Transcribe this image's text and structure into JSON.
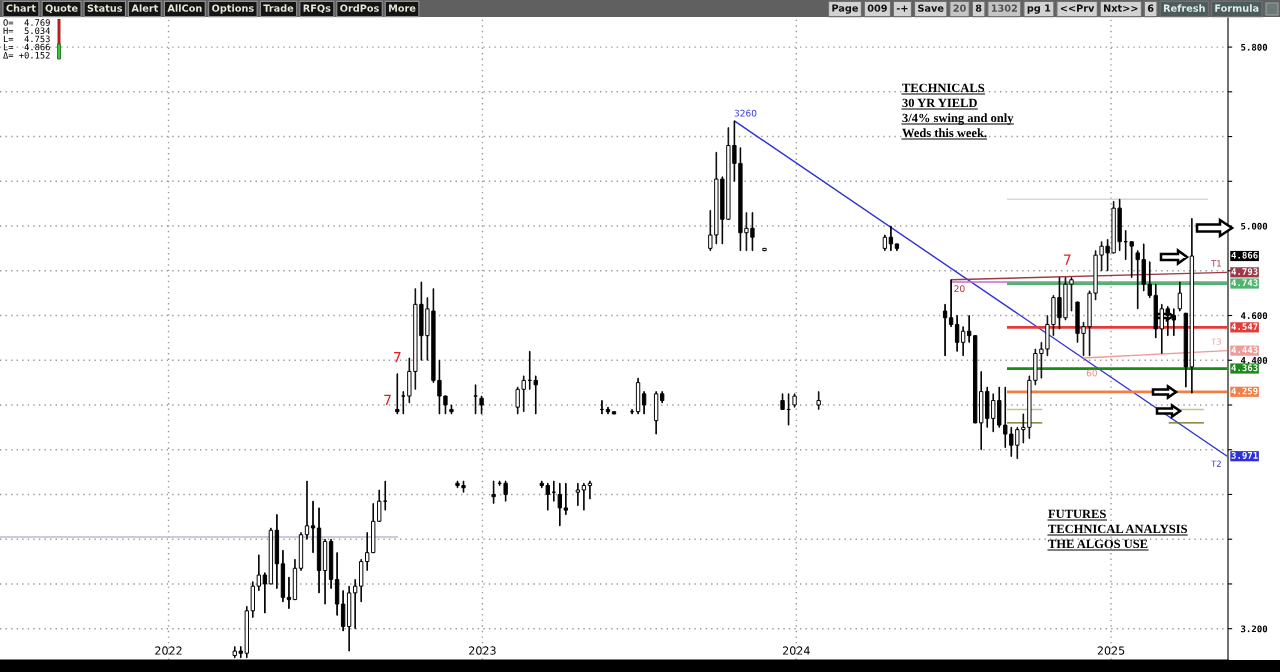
{
  "chart_data": {
    "type": "candlestick",
    "color": "#000000",
    "x": [
      "2022-03-19",
      "2022-03-26",
      "2022-04-02",
      "2022-04-09",
      "2022-04-16",
      "2022-04-23",
      "2022-04-30",
      "2022-05-07",
      "2022-05-14",
      "2022-05-21",
      "2022-05-28",
      "2022-06-04",
      "2022-06-11",
      "2022-06-18",
      "2022-06-25",
      "2022-07-02",
      "2022-07-09",
      "2022-07-16",
      "2022-07-23",
      "2022-07-30",
      "2022-08-06",
      "2022-08-13",
      "2022-08-20",
      "2022-08-27",
      "2022-09-03",
      "2022-09-10",
      "2022-09-24",
      "2022-10-01",
      "2022-10-08",
      "2022-10-15",
      "2022-10-22",
      "2022-10-29",
      "2022-11-05",
      "2022-11-12",
      "2022-11-19",
      "2022-11-26",
      "2022-12-03",
      "2022-12-10",
      "2022-12-24",
      "2022-12-31",
      "2023-01-14",
      "2023-01-21",
      "2023-01-28",
      "2023-02-11",
      "2023-02-18",
      "2023-02-25",
      "2023-03-04",
      "2023-03-11",
      "2023-03-18",
      "2023-03-25",
      "2023-04-01",
      "2023-04-08",
      "2023-04-22",
      "2023-04-29",
      "2023-05-06",
      "2023-05-20",
      "2023-05-27",
      "2023-06-03",
      "2023-06-24",
      "2023-07-01",
      "2023-07-08",
      "2023-07-22",
      "2023-07-29",
      "2023-09-23",
      "2023-09-30",
      "2023-10-07",
      "2023-10-14",
      "2023-10-21",
      "2023-10-28",
      "2023-11-04",
      "2023-11-11",
      "2023-11-25",
      "2023-12-16",
      "2023-12-23",
      "2023-12-30",
      "2024-01-27",
      "2024-04-13",
      "2024-04-20",
      "2024-04-27",
      "2024-06-22",
      "2024-06-29",
      "2024-07-06",
      "2024-07-13",
      "2024-07-20",
      "2024-07-27",
      "2024-08-03",
      "2024-08-10",
      "2024-08-17",
      "2024-08-24",
      "2024-08-31",
      "2024-09-07",
      "2024-09-14",
      "2024-09-21",
      "2024-09-28",
      "2024-10-05",
      "2024-10-12",
      "2024-10-19",
      "2024-10-26",
      "2024-11-02",
      "2024-11-09",
      "2024-11-16",
      "2024-11-23",
      "2024-11-30",
      "2024-12-07",
      "2024-12-14",
      "2024-12-21",
      "2024-12-28",
      "2025-01-04",
      "2025-01-11",
      "2025-01-18",
      "2025-01-25",
      "2025-02-01",
      "2025-02-08",
      "2025-02-15",
      "2025-02-22",
      "2025-03-01",
      "2025-03-08",
      "2025-03-15",
      "2025-03-22",
      "2025-03-29",
      "2025-04-05"
    ],
    "ohlc": [
      [
        3.08,
        3.12,
        3.07,
        3.1
      ],
      [
        3.1,
        3.12,
        3.07,
        3.09
      ],
      [
        3.09,
        3.3,
        3.07,
        3.28
      ],
      [
        3.28,
        3.41,
        3.25,
        3.39
      ],
      [
        3.39,
        3.53,
        3.37,
        3.44
      ],
      [
        3.44,
        3.45,
        3.27,
        3.4
      ],
      [
        3.4,
        3.65,
        3.4,
        3.64
      ],
      [
        3.64,
        3.71,
        3.38,
        3.49
      ],
      [
        3.49,
        3.55,
        3.32,
        3.34
      ],
      [
        3.34,
        3.43,
        3.29,
        3.33
      ],
      [
        3.33,
        3.51,
        3.33,
        3.47
      ],
      [
        3.47,
        3.63,
        3.46,
        3.62
      ],
      [
        3.62,
        3.86,
        3.6,
        3.66
      ],
      [
        3.66,
        3.77,
        3.54,
        3.65
      ],
      [
        3.65,
        3.74,
        3.36,
        3.46
      ],
      [
        3.46,
        3.6,
        3.31,
        3.59
      ],
      [
        3.59,
        3.6,
        3.38,
        3.42
      ],
      [
        3.42,
        3.54,
        3.26,
        3.31
      ],
      [
        3.31,
        3.37,
        3.19,
        3.21
      ],
      [
        3.21,
        3.39,
        3.1,
        3.36
      ],
      [
        3.36,
        3.42,
        3.2,
        3.39
      ],
      [
        3.39,
        3.51,
        3.32,
        3.5
      ],
      [
        3.5,
        3.63,
        3.46,
        3.54
      ],
      [
        3.54,
        3.76,
        3.54,
        3.68
      ],
      [
        3.68,
        3.82,
        3.68,
        3.77
      ],
      [
        3.77,
        3.86,
        3.73,
        3.77
      ],
      [
        4.18,
        4.34,
        4.16,
        4.17
      ],
      [
        4.24,
        4.26,
        4.16,
        4.24
      ],
      [
        4.24,
        4.41,
        4.21,
        4.35
      ],
      [
        4.35,
        4.72,
        4.27,
        4.65
      ],
      [
        4.65,
        4.75,
        4.4,
        4.51
      ],
      [
        4.51,
        4.68,
        4.4,
        4.63
      ],
      [
        4.62,
        4.72,
        4.3,
        4.31
      ],
      [
        4.31,
        4.4,
        4.16,
        4.24
      ],
      [
        4.24,
        4.24,
        4.16,
        4.2
      ],
      [
        4.18,
        4.2,
        4.16,
        4.17
      ],
      [
        3.85,
        3.86,
        3.83,
        3.84
      ],
      [
        3.84,
        3.86,
        3.81,
        3.83
      ],
      [
        4.24,
        4.29,
        4.16,
        4.24
      ],
      [
        4.23,
        4.24,
        4.16,
        4.2
      ],
      [
        3.8,
        3.86,
        3.76,
        3.79
      ],
      [
        3.85,
        3.86,
        3.84,
        3.85
      ],
      [
        3.85,
        3.86,
        3.77,
        3.8
      ],
      [
        4.19,
        4.28,
        4.16,
        4.27
      ],
      [
        4.27,
        4.33,
        4.17,
        4.31
      ],
      [
        4.31,
        4.44,
        4.27,
        4.31
      ],
      [
        4.31,
        4.33,
        4.16,
        4.29
      ],
      [
        3.85,
        3.86,
        3.83,
        3.84
      ],
      [
        3.84,
        3.85,
        3.73,
        3.8
      ],
      [
        3.81,
        3.86,
        3.77,
        3.81
      ],
      [
        3.8,
        3.85,
        3.66,
        3.74
      ],
      [
        3.74,
        3.85,
        3.71,
        3.73
      ],
      [
        3.81,
        3.85,
        3.75,
        3.82
      ],
      [
        3.82,
        3.85,
        3.73,
        3.84
      ],
      [
        3.84,
        3.86,
        3.78,
        3.85
      ],
      [
        4.18,
        4.22,
        4.16,
        4.18
      ],
      [
        4.18,
        4.19,
        4.16,
        4.17
      ],
      [
        4.17,
        4.17,
        4.16,
        4.16
      ],
      [
        4.17,
        4.18,
        4.16,
        4.17
      ],
      [
        4.17,
        4.32,
        4.16,
        4.3
      ],
      [
        4.25,
        4.26,
        4.16,
        4.2
      ],
      [
        4.13,
        4.26,
        4.07,
        4.25
      ],
      [
        4.25,
        4.26,
        4.21,
        4.22
      ],
      [
        4.9,
        5.07,
        4.89,
        4.96
      ],
      [
        4.96,
        5.33,
        4.92,
        5.21
      ],
      [
        5.21,
        5.22,
        4.92,
        5.03
      ],
      [
        5.03,
        5.44,
        5.03,
        5.36
      ],
      [
        5.36,
        5.47,
        5.2,
        5.28
      ],
      [
        5.28,
        5.35,
        4.89,
        4.97
      ],
      [
        4.97,
        5.06,
        4.89,
        4.99
      ],
      [
        4.99,
        5.06,
        4.89,
        4.95
      ],
      [
        4.89,
        4.9,
        4.89,
        4.9
      ],
      [
        4.22,
        4.25,
        4.18,
        4.18
      ],
      [
        4.18,
        4.25,
        4.11,
        4.18
      ],
      [
        4.2,
        4.25,
        4.19,
        4.24
      ],
      [
        4.2,
        4.26,
        4.18,
        4.22
      ],
      [
        4.9,
        4.96,
        4.89,
        4.95
      ],
      [
        4.95,
        5.0,
        4.89,
        4.92
      ],
      [
        4.92,
        4.92,
        4.89,
        4.9
      ],
      [
        4.62,
        4.65,
        4.42,
        4.59
      ],
      [
        4.59,
        4.76,
        4.55,
        4.56
      ],
      [
        4.56,
        4.6,
        4.44,
        4.48
      ],
      [
        4.48,
        4.55,
        4.42,
        4.53
      ],
      [
        4.53,
        4.6,
        4.48,
        4.51
      ],
      [
        4.51,
        4.51,
        4.12,
        4.12
      ],
      [
        4.12,
        4.35,
        4.0,
        4.26
      ],
      [
        4.26,
        4.28,
        4.1,
        4.14
      ],
      [
        4.14,
        4.25,
        4.08,
        4.22
      ],
      [
        4.22,
        4.28,
        4.1,
        4.11
      ],
      [
        4.11,
        4.28,
        4.01,
        4.07
      ],
      [
        4.07,
        4.1,
        3.97,
        4.02
      ],
      [
        4.02,
        4.1,
        3.96,
        4.09
      ],
      [
        4.09,
        4.16,
        4.03,
        4.1
      ],
      [
        4.1,
        4.33,
        4.05,
        4.31
      ],
      [
        4.31,
        4.45,
        4.29,
        4.43
      ],
      [
        4.43,
        4.48,
        4.32,
        4.45
      ],
      [
        4.45,
        4.6,
        4.42,
        4.56
      ],
      [
        4.56,
        4.69,
        4.51,
        4.68
      ],
      [
        4.68,
        4.77,
        4.54,
        4.59
      ],
      [
        4.59,
        4.77,
        4.58,
        4.74
      ],
      [
        4.74,
        4.77,
        4.62,
        4.76
      ],
      [
        4.66,
        4.66,
        4.48,
        4.52
      ],
      [
        4.52,
        4.57,
        4.42,
        4.55
      ],
      [
        4.55,
        4.71,
        4.42,
        4.7
      ],
      [
        4.7,
        4.89,
        4.67,
        4.87
      ],
      [
        4.87,
        4.93,
        4.8,
        4.91
      ],
      [
        4.91,
        4.94,
        4.8,
        4.88
      ],
      [
        4.88,
        5.11,
        4.88,
        5.08
      ],
      [
        5.08,
        5.12,
        4.89,
        4.93
      ],
      [
        4.93,
        4.98,
        4.85,
        4.93
      ],
      [
        4.93,
        4.93,
        4.77,
        4.91
      ],
      [
        4.88,
        4.89,
        4.63,
        4.85
      ],
      [
        4.85,
        4.92,
        4.71,
        4.74
      ],
      [
        4.74,
        4.84,
        4.68,
        4.69
      ],
      [
        4.69,
        4.74,
        4.5,
        4.54
      ],
      [
        4.54,
        4.65,
        4.43,
        4.63
      ],
      [
        4.63,
        4.64,
        4.51,
        4.6
      ],
      [
        4.6,
        4.63,
        4.51,
        4.58
      ],
      [
        4.63,
        4.75,
        4.62,
        4.7
      ],
      [
        4.61,
        4.61,
        4.28,
        4.37
      ],
      [
        4.37,
        5.034,
        4.253,
        4.866
      ]
    ],
    "value_labels": [
      null,
      null,
      null,
      null,
      null,
      null,
      null,
      null,
      null,
      null,
      null,
      null,
      null,
      null,
      null,
      null,
      null,
      null,
      null,
      null,
      null,
      null,
      null,
      null,
      null,
      null,
      null,
      null,
      null,
      null,
      null,
      null,
      null,
      null,
      null,
      null,
      null,
      null,
      null,
      null,
      null,
      null,
      null,
      null,
      null,
      null,
      null,
      null,
      null,
      null,
      null,
      null,
      null,
      null,
      null,
      null,
      null,
      null,
      null,
      null,
      null,
      null,
      null,
      null,
      null,
      null,
      null,
      null,
      null,
      null,
      null,
      null,
      null,
      null,
      null,
      null,
      null,
      null,
      null,
      null,
      null,
      null,
      null,
      null,
      null,
      null,
      null,
      null,
      null,
      null,
      null,
      null,
      null,
      null,
      null,
      null,
      null,
      null,
      null,
      null,
      null,
      null,
      null,
      null,
      null,
      null,
      null,
      null,
      null,
      null,
      null,
      null,
      null,
      null,
      null,
      null,
      null,
      null,
      null,
      null,
      "4.866"
    ],
    "series": [
      {
        "type": "line",
        "name": "T2",
        "color": "#2f2fd8",
        "x": [
          "2023-10-21",
          "2025-05-16"
        ],
        "values": [
          5.47,
          3.971
        ],
        "value_labels": [
          null,
          "3.971"
        ]
      },
      {
        "type": "line",
        "name": "T1",
        "color": "#9c3a48",
        "x": [
          "2024-06-29",
          "2025-05-16"
        ],
        "values": [
          4.76,
          4.793
        ],
        "value_labels": [
          null,
          "4.793"
        ]
      },
      {
        "type": "line",
        "color": "#c86cc8",
        "x": [
          "2024-06-29",
          "2025-05-16"
        ],
        "values": [
          4.75,
          4.75
        ]
      },
      {
        "type": "line",
        "name": "T3",
        "color": "#f19a9a",
        "x": [
          "2024-11-30",
          "2025-05-16"
        ],
        "values": [
          4.41,
          4.443
        ],
        "value_labels": [
          null,
          "4.443"
        ]
      },
      {
        "type": "line",
        "color": "#4db56e",
        "x": [
          "2024-09-02",
          "2025-05-16"
        ],
        "values": [
          4.743,
          4.743
        ],
        "value_labels": [
          null,
          "4.743"
        ]
      },
      {
        "type": "line",
        "color": "#e03c3c",
        "x": [
          "2024-09-02",
          "2025-05-16"
        ],
        "values": [
          4.547,
          4.547
        ],
        "value_labels": [
          null,
          "4.547"
        ]
      },
      {
        "type": "line",
        "color": "#1a8a1a",
        "x": [
          "2024-09-02",
          "2025-05-16"
        ],
        "values": [
          4.363,
          4.363
        ],
        "value_labels": [
          null,
          "4.363"
        ]
      },
      {
        "type": "line",
        "color": "#f08048",
        "x": [
          "2024-09-02",
          "2025-05-16"
        ],
        "values": [
          4.259,
          4.259
        ],
        "value_labels": [
          null,
          "4.259"
        ]
      },
      {
        "type": "line",
        "color": "#d8d8d8",
        "x": [
          "2024-09-02",
          "2025-04-24"
        ],
        "values": [
          5.12,
          5.12
        ]
      },
      {
        "type": "line",
        "color": "#c3c38c",
        "x": [
          "2024-09-02",
          "2024-10-13",
          "2024-12-01",
          "2025-03-09",
          "2025-04-19"
        ],
        "values": [
          4.18,
          4.18,
          null,
          4.18,
          4.18
        ]
      },
      {
        "type": "line",
        "color": "#6b6b1c",
        "x": [
          "2024-09-02",
          "2024-10-13",
          "2024-12-01",
          "2025-03-09",
          "2025-04-19"
        ],
        "values": [
          4.12,
          4.12,
          null,
          4.12,
          4.12
        ]
      },
      {
        "type": "line",
        "color": "#b8b8dc",
        "x": [
          "2021-06-19",
          "2022-09-25"
        ],
        "values": [
          3.61,
          3.61
        ]
      }
    ],
    "xlim": [
      "2021-06-19",
      "2025-05-17"
    ],
    "xticks": [
      {
        "value": "2022-01-01",
        "label": "2022"
      },
      {
        "value": "2023-01-01",
        "label": "2023"
      },
      {
        "value": "2024-01-01",
        "label": "2024"
      },
      {
        "value": "2025-01-01",
        "label": "2025"
      }
    ],
    "ylim": [
      3.06,
      5.93
    ],
    "yticks": [
      {
        "value": 3.2,
        "label": "3.200"
      },
      {
        "value": 3.4,
        "label": null
      },
      {
        "value": 3.6,
        "label": null
      },
      {
        "value": 3.8,
        "label": null
      },
      {
        "value": 4.0,
        "label": null
      },
      {
        "value": 4.2,
        "label": null
      },
      {
        "value": 4.4,
        "label": "4.400"
      },
      {
        "value": 4.6,
        "label": "4.600"
      },
      {
        "value": 4.8,
        "label": null
      },
      {
        "value": 5.0,
        "label": "5.000"
      },
      {
        "value": 5.2,
        "label": null
      },
      {
        "value": 5.4,
        "label": null
      },
      {
        "value": 5.6,
        "label": null
      },
      {
        "value": 5.8,
        "label": "5.800"
      }
    ],
    "grid": true,
    "annotations": [
      "Chart",
      "Quote",
      "Status",
      "Alert",
      "AllCon",
      "Options",
      "Trade",
      "RFQs",
      "OrdPos",
      "More",
      "Page",
      "009",
      "-+",
      "Save",
      "20",
      "8",
      "1302",
      "pg 1",
      "<<Prv",
      "Nxt>>",
      "6",
      "Refresh",
      "Formula",
      "O=  4.769\nH=  5.034\nL=  4.753\nL=  4.866\nΔ= +0.152",
      "TECHNICALS\n30 YR YIELD\n3/4% swing and only\nWeds this week.",
      "FUTURES\nTECHNICAL ANALYSIS\nTHE ALGOS USE",
      {
        "text": "7",
        "x": "2022-09-24",
        "y": 4.34
      },
      {
        "text": "7",
        "x": "2022-09-24",
        "y": 4.18
      },
      {
        "text": "7",
        "x": "2024-11-16",
        "y": 4.77
      },
      {
        "text": "3260",
        "x": "2023-10-21",
        "y": 5.47
      },
      {
        "text": "20",
        "x": "2024-06-29",
        "y": 4.76
      },
      {
        "text": "60",
        "x": "2024-11-30",
        "y": 4.42
      }
    ]
  }
}
